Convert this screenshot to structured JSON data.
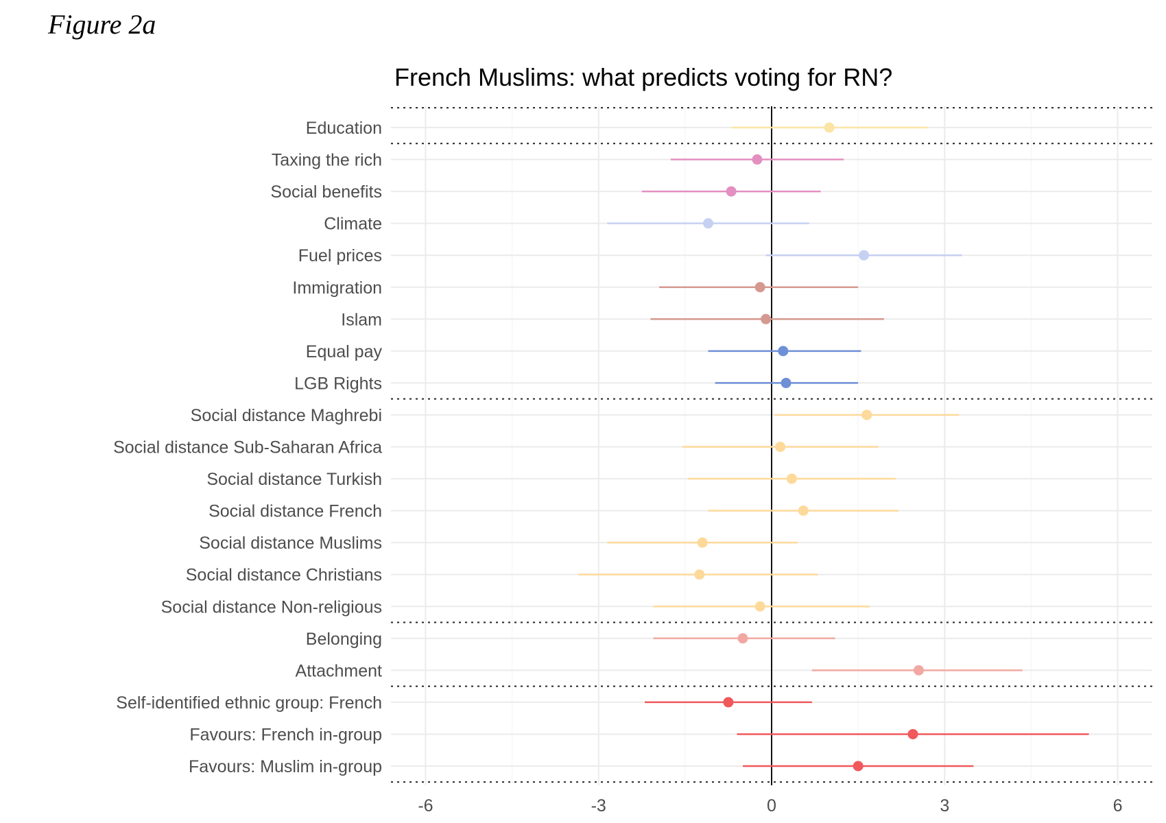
{
  "figure_label": "Figure 2a",
  "chart_data": {
    "type": "scatter",
    "subtype": "coefficient-plot",
    "title": "French Muslims: what predicts voting for RN?",
    "xlabel": "",
    "ylabel": "",
    "xlim": [
      -6.6,
      6.6
    ],
    "xticks": [
      -6,
      -3,
      0,
      3,
      6
    ],
    "xtick_labels": [
      "-6",
      "-3",
      "0",
      "3",
      "6"
    ],
    "grid": true,
    "zero_line": true,
    "groups": [
      {
        "rows": [
          0
        ]
      },
      {
        "rows": [
          1,
          2,
          3,
          4,
          5,
          6,
          7,
          8
        ]
      },
      {
        "rows": [
          9,
          10,
          11,
          12,
          13,
          14,
          15
        ]
      },
      {
        "rows": [
          16,
          17
        ]
      },
      {
        "rows": [
          18,
          19,
          20
        ]
      }
    ],
    "rows": [
      {
        "label": "Education",
        "estimate": 1.0,
        "low": -0.7,
        "high": 2.7,
        "color": "#fbe4a6"
      },
      {
        "label": "Taxing the rich",
        "estimate": -0.25,
        "low": -1.75,
        "high": 1.25,
        "color": "#e38fc0"
      },
      {
        "label": "Social benefits",
        "estimate": -0.7,
        "low": -2.25,
        "high": 0.85,
        "color": "#e38fc0"
      },
      {
        "label": "Climate",
        "estimate": -1.1,
        "low": -2.85,
        "high": 0.65,
        "color": "#c5d0f2"
      },
      {
        "label": "Fuel prices",
        "estimate": 1.6,
        "low": -0.1,
        "high": 3.3,
        "color": "#c5d0f2"
      },
      {
        "label": "Immigration",
        "estimate": -0.2,
        "low": -1.95,
        "high": 1.5,
        "color": "#d4998f"
      },
      {
        "label": "Islam",
        "estimate": -0.1,
        "low": -2.1,
        "high": 1.95,
        "color": "#d4998f"
      },
      {
        "label": "Equal pay",
        "estimate": 0.2,
        "low": -1.1,
        "high": 1.55,
        "color": "#6f8fd6"
      },
      {
        "label": "LGB Rights",
        "estimate": 0.25,
        "low": -0.98,
        "high": 1.5,
        "color": "#6f8fd6"
      },
      {
        "label": "Social distance Maghrebi",
        "estimate": 1.65,
        "low": 0.05,
        "high": 3.25,
        "color": "#fdd99a"
      },
      {
        "label": "Social distance Sub-Saharan Africa",
        "estimate": 0.15,
        "low": -1.55,
        "high": 1.85,
        "color": "#fdd99a"
      },
      {
        "label": "Social distance Turkish",
        "estimate": 0.35,
        "low": -1.45,
        "high": 2.15,
        "color": "#fdd99a"
      },
      {
        "label": "Social distance French",
        "estimate": 0.55,
        "low": -1.1,
        "high": 2.2,
        "color": "#fdd99a"
      },
      {
        "label": "Social distance Muslims",
        "estimate": -1.2,
        "low": -2.85,
        "high": 0.45,
        "color": "#fdd99a"
      },
      {
        "label": "Social distance Christians",
        "estimate": -1.25,
        "low": -3.35,
        "high": 0.8,
        "color": "#fdd99a"
      },
      {
        "label": "Social distance Non-religious",
        "estimate": -0.2,
        "low": -2.05,
        "high": 1.7,
        "color": "#fdd99a"
      },
      {
        "label": "Belonging",
        "estimate": -0.5,
        "low": -2.05,
        "high": 1.1,
        "color": "#f2a8a2"
      },
      {
        "label": "Attachment",
        "estimate": 2.55,
        "low": 0.7,
        "high": 4.35,
        "color": "#f2a8a2"
      },
      {
        "label": "Self-identified ethnic group: French",
        "estimate": -0.75,
        "low": -2.2,
        "high": 0.7,
        "color": "#f0585c"
      },
      {
        "label": "Favours: French in-group",
        "estimate": 2.45,
        "low": -0.6,
        "high": 5.5,
        "color": "#f0585c"
      },
      {
        "label": "Favours: Muslim in-group",
        "estimate": 1.5,
        "low": -0.5,
        "high": 3.5,
        "color": "#f0585c"
      }
    ]
  }
}
